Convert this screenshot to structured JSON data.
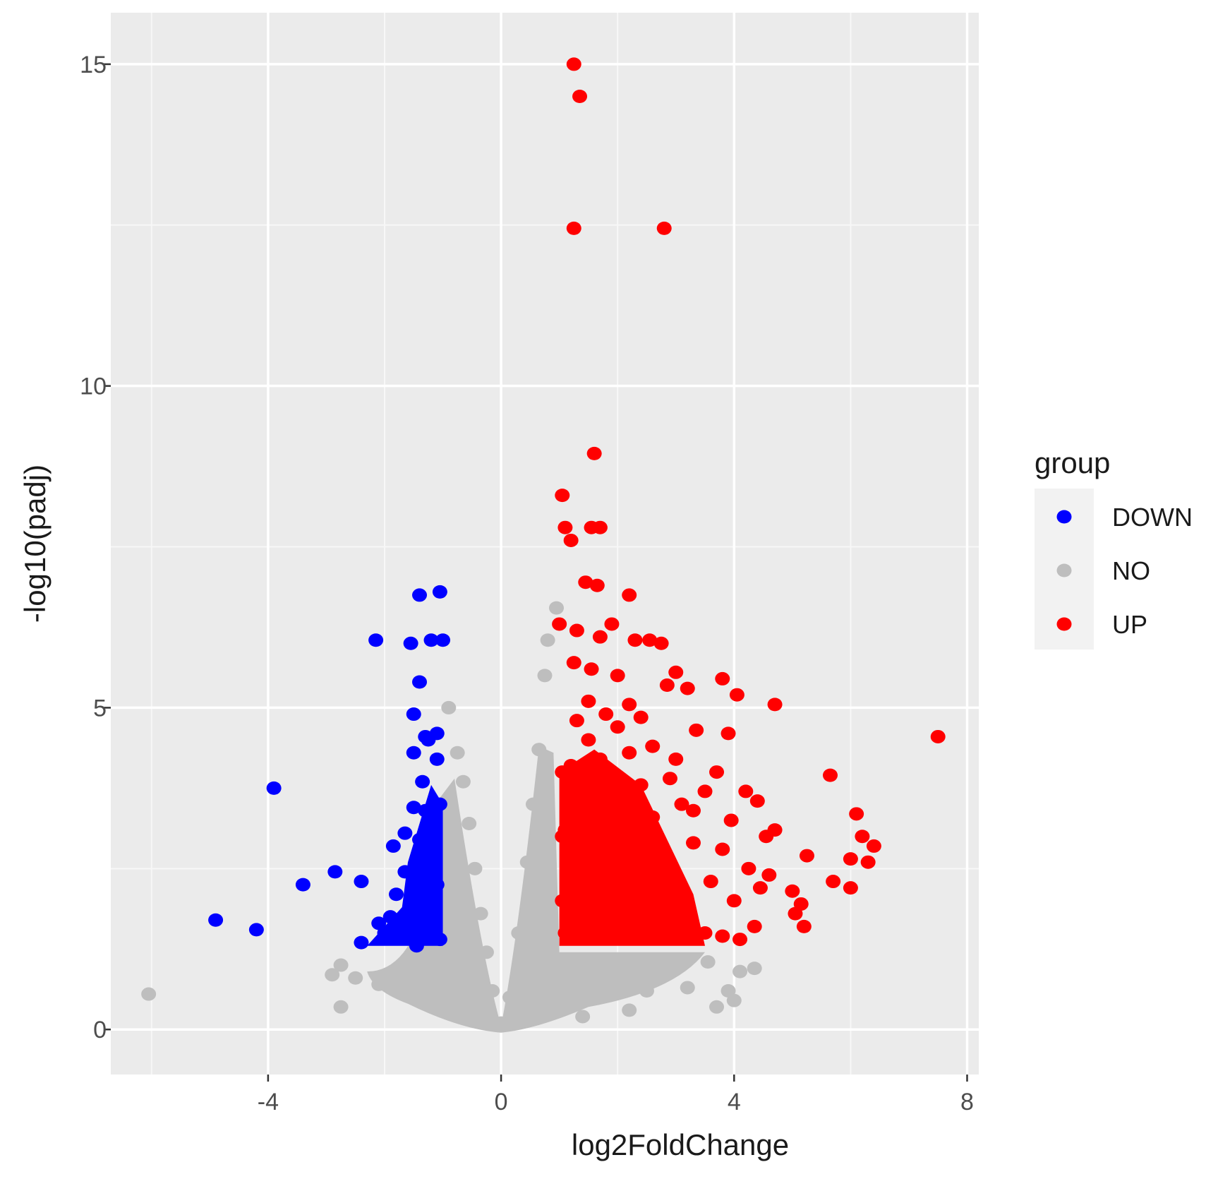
{
  "chart_data": {
    "type": "scatter",
    "title": "",
    "xlabel": "log2FoldChange",
    "ylabel": "-log10(padj)",
    "xlim": [
      -6.7,
      8.2
    ],
    "ylim": [
      -0.7,
      15.8
    ],
    "x_ticks": [
      -4,
      0,
      4,
      8
    ],
    "x_tick_labels": [
      "-4",
      "0",
      "4",
      "8"
    ],
    "y_ticks": [
      0,
      5,
      10,
      15
    ],
    "y_tick_labels": [
      "0",
      "5",
      "10",
      "15"
    ],
    "grid": true,
    "legend": {
      "title": "group",
      "position": "right",
      "entries": [
        {
          "label": "DOWN",
          "color": "#0000ff"
        },
        {
          "label": "NO",
          "color": "#bebebe"
        },
        {
          "label": "UP",
          "color": "#ff0000"
        }
      ]
    },
    "thresholds": {
      "log2FoldChange_abs": 1,
      "padj": 0.05
    },
    "series": [
      {
        "name": "DOWN",
        "color": "#0000ff",
        "points": [
          [
            -4.9,
            1.7
          ],
          [
            -4.2,
            1.55
          ],
          [
            -3.9,
            3.75
          ],
          [
            -3.4,
            2.25
          ],
          [
            -2.85,
            2.45
          ],
          [
            -2.4,
            2.3
          ],
          [
            -2.15,
            6.05
          ],
          [
            -1.55,
            6.0
          ],
          [
            -1.4,
            6.75
          ],
          [
            -1.2,
            6.05
          ],
          [
            -1.05,
            6.8
          ],
          [
            -1.0,
            6.05
          ],
          [
            -1.4,
            5.4
          ],
          [
            -1.5,
            4.9
          ],
          [
            -1.3,
            4.55
          ],
          [
            -1.1,
            4.6
          ],
          [
            -1.5,
            4.3
          ],
          [
            -1.1,
            4.2
          ],
          [
            -1.5,
            3.45
          ],
          [
            -1.3,
            3.4
          ],
          [
            -1.05,
            3.5
          ],
          [
            -1.2,
            3.05
          ],
          [
            -1.4,
            2.95
          ],
          [
            -1.85,
            2.85
          ],
          [
            -1.15,
            2.6
          ],
          [
            -1.65,
            2.45
          ],
          [
            -1.1,
            2.25
          ],
          [
            -1.8,
            2.1
          ],
          [
            -1.35,
            2.0
          ],
          [
            -1.55,
            1.8
          ],
          [
            -2.1,
            1.65
          ],
          [
            -1.25,
            1.55
          ],
          [
            -1.7,
            1.5
          ],
          [
            -2.4,
            1.35
          ],
          [
            -1.45,
            1.3
          ],
          [
            -1.05,
            1.4
          ],
          [
            -1.25,
            4.5
          ],
          [
            -1.35,
            3.85
          ],
          [
            -1.65,
            3.05
          ],
          [
            -2.0,
            1.5
          ],
          [
            -1.9,
            1.75
          ]
        ]
      },
      {
        "name": "NO",
        "color": "#bebebe",
        "points": [
          [
            -6.05,
            0.55
          ],
          [
            -2.75,
            1.0
          ],
          [
            -2.9,
            0.85
          ],
          [
            -2.5,
            0.8
          ],
          [
            -2.1,
            0.7
          ],
          [
            -1.6,
            0.6
          ],
          [
            -2.75,
            0.35
          ],
          [
            -0.9,
            5.0
          ],
          [
            -0.75,
            4.3
          ],
          [
            -0.65,
            3.85
          ],
          [
            -0.55,
            3.2
          ],
          [
            -0.45,
            2.5
          ],
          [
            -0.35,
            1.8
          ],
          [
            -0.25,
            1.2
          ],
          [
            -0.15,
            0.6
          ],
          [
            0.0,
            0.1
          ],
          [
            0.15,
            0.5
          ],
          [
            0.3,
            1.5
          ],
          [
            0.45,
            2.6
          ],
          [
            0.55,
            3.5
          ],
          [
            0.65,
            4.35
          ],
          [
            0.75,
            5.5
          ],
          [
            0.8,
            6.05
          ],
          [
            0.95,
            6.55
          ],
          [
            1.2,
            0.8
          ],
          [
            1.8,
            0.7
          ],
          [
            2.5,
            0.6
          ],
          [
            2.2,
            0.3
          ],
          [
            3.2,
            0.65
          ],
          [
            3.7,
            0.35
          ],
          [
            3.9,
            0.6
          ],
          [
            4.0,
            0.45
          ],
          [
            4.35,
            0.95
          ],
          [
            4.1,
            0.9
          ],
          [
            3.55,
            1.05
          ],
          [
            1.4,
            0.2
          ]
        ]
      },
      {
        "name": "UP",
        "color": "#ff0000",
        "points": [
          [
            1.25,
            15.0
          ],
          [
            1.35,
            14.5
          ],
          [
            1.25,
            12.45
          ],
          [
            2.8,
            12.45
          ],
          [
            1.6,
            8.95
          ],
          [
            1.05,
            8.3
          ],
          [
            1.1,
            7.8
          ],
          [
            1.55,
            7.8
          ],
          [
            1.7,
            7.8
          ],
          [
            1.2,
            7.6
          ],
          [
            1.45,
            6.95
          ],
          [
            1.65,
            6.9
          ],
          [
            2.2,
            6.75
          ],
          [
            1.0,
            6.3
          ],
          [
            1.3,
            6.2
          ],
          [
            1.9,
            6.3
          ],
          [
            1.7,
            6.1
          ],
          [
            2.3,
            6.05
          ],
          [
            2.55,
            6.05
          ],
          [
            2.75,
            6.0
          ],
          [
            1.25,
            5.7
          ],
          [
            1.55,
            5.6
          ],
          [
            2.0,
            5.5
          ],
          [
            3.0,
            5.55
          ],
          [
            3.8,
            5.45
          ],
          [
            2.85,
            5.35
          ],
          [
            3.2,
            5.3
          ],
          [
            4.05,
            5.2
          ],
          [
            4.7,
            5.05
          ],
          [
            1.5,
            5.1
          ],
          [
            2.2,
            5.05
          ],
          [
            3.35,
            4.65
          ],
          [
            3.9,
            4.6
          ],
          [
            7.5,
            4.55
          ],
          [
            2.6,
            4.4
          ],
          [
            3.0,
            4.2
          ],
          [
            3.7,
            4.0
          ],
          [
            5.65,
            3.95
          ],
          [
            4.4,
            3.55
          ],
          [
            3.3,
            3.4
          ],
          [
            6.1,
            3.35
          ],
          [
            4.7,
            3.1
          ],
          [
            6.2,
            3.0
          ],
          [
            6.4,
            2.85
          ],
          [
            5.25,
            2.7
          ],
          [
            6.0,
            2.65
          ],
          [
            6.3,
            2.6
          ],
          [
            4.45,
            2.2
          ],
          [
            5.7,
            2.3
          ],
          [
            5.0,
            2.15
          ],
          [
            6.0,
            2.2
          ],
          [
            5.15,
            1.95
          ],
          [
            5.05,
            1.8
          ],
          [
            5.2,
            1.6
          ],
          [
            4.35,
            1.6
          ],
          [
            4.1,
            1.4
          ],
          [
            3.8,
            1.45
          ],
          [
            1.1,
            1.5
          ],
          [
            1.5,
            1.5
          ],
          [
            2.0,
            1.5
          ],
          [
            2.5,
            1.5
          ],
          [
            3.0,
            1.5
          ],
          [
            3.5,
            1.5
          ],
          [
            1.2,
            2.0
          ],
          [
            1.6,
            2.2
          ],
          [
            2.1,
            2.0
          ],
          [
            2.6,
            2.1
          ],
          [
            3.1,
            2.0
          ],
          [
            3.6,
            2.3
          ],
          [
            1.3,
            2.6
          ],
          [
            1.8,
            2.8
          ],
          [
            2.3,
            2.6
          ],
          [
            2.8,
            2.7
          ],
          [
            3.3,
            2.9
          ],
          [
            3.8,
            2.8
          ],
          [
            1.1,
            3.1
          ],
          [
            1.6,
            3.3
          ],
          [
            2.1,
            3.2
          ],
          [
            2.6,
            3.3
          ],
          [
            3.1,
            3.5
          ],
          [
            1.3,
            3.6
          ],
          [
            1.8,
            3.7
          ],
          [
            2.4,
            3.8
          ],
          [
            2.9,
            3.9
          ],
          [
            1.2,
            4.1
          ],
          [
            1.7,
            4.2
          ],
          [
            2.2,
            4.3
          ],
          [
            1.5,
            4.5
          ],
          [
            2.0,
            4.7
          ],
          [
            1.3,
            4.8
          ],
          [
            1.8,
            4.9
          ],
          [
            2.4,
            4.85
          ],
          [
            1.05,
            4.0
          ],
          [
            1.05,
            3.0
          ],
          [
            1.05,
            2.0
          ],
          [
            4.0,
            2.0
          ],
          [
            4.25,
            2.5
          ],
          [
            4.55,
            3.0
          ],
          [
            3.95,
            3.25
          ],
          [
            4.2,
            3.7
          ],
          [
            4.6,
            2.4
          ],
          [
            3.5,
            3.7
          ]
        ]
      }
    ],
    "dense_regions": [
      {
        "series": "NO",
        "kind": "funnel",
        "x_left_edge": -1.0,
        "x_right_edge": 1.0,
        "x_outer_left": -2.3,
        "x_outer_right": 3.5
      },
      {
        "series": "UP",
        "kind": "block",
        "x_from": 1.0,
        "x_to": 3.3,
        "y_from": 1.3,
        "y_to": 4.0
      },
      {
        "series": "DOWN",
        "kind": "column",
        "x_from": -1.6,
        "x_to": -1.0,
        "y_from": 1.3,
        "y_to": 3.8
      }
    ]
  }
}
